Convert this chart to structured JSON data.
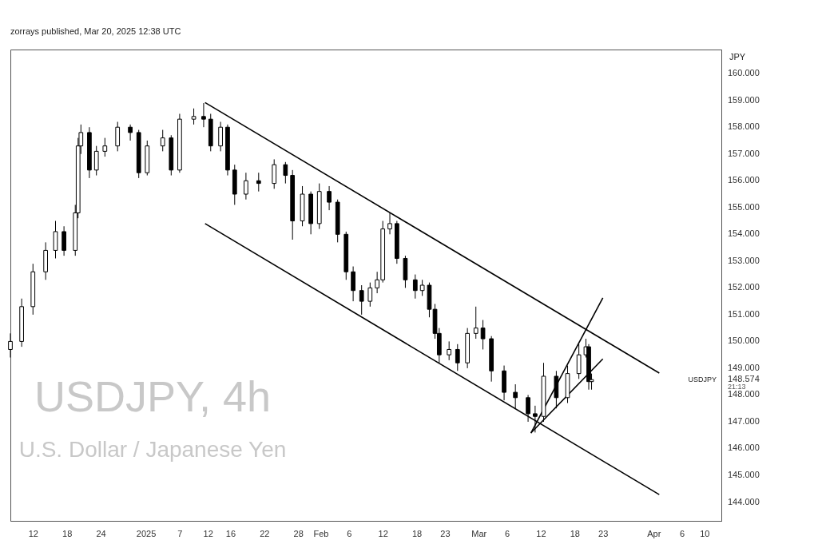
{
  "chart_data": {
    "type": "candlestick",
    "title": "USDJPY, 4h",
    "subtitle": "U.S. Dollar / Japanese Yen",
    "ylabel": "JPY",
    "annotations": [
      "zorrays published, Mar 20, 2025 12:38 UTC",
      "USDJPY",
      "21:13"
    ],
    "xlim": [
      "2024-12-08",
      "2025-04-13"
    ],
    "ylim": [
      143.3,
      160.9
    ],
    "xticks": [
      {
        "value": "2024-12-12",
        "label": "12"
      },
      {
        "value": "2024-12-18",
        "label": "18"
      },
      {
        "value": "2024-12-24",
        "label": "24"
      },
      {
        "value": "2025-01-01",
        "label": "2025"
      },
      {
        "value": "2025-01-07",
        "label": "7"
      },
      {
        "value": "2025-01-12",
        "label": "12"
      },
      {
        "value": "2025-01-16",
        "label": "16"
      },
      {
        "value": "2025-01-22",
        "label": "22"
      },
      {
        "value": "2025-01-28",
        "label": "28"
      },
      {
        "value": "2025-02-01",
        "label": "Feb"
      },
      {
        "value": "2025-02-06",
        "label": "6"
      },
      {
        "value": "2025-02-12",
        "label": "12"
      },
      {
        "value": "2025-02-18",
        "label": "18"
      },
      {
        "value": "2025-02-23",
        "label": "23"
      },
      {
        "value": "2025-03-01",
        "label": "Mar"
      },
      {
        "value": "2025-03-06",
        "label": "6"
      },
      {
        "value": "2025-03-12",
        "label": "12"
      },
      {
        "value": "2025-03-18",
        "label": "18"
      },
      {
        "value": "2025-03-23",
        "label": "23"
      },
      {
        "value": "2025-04-01",
        "label": "Apr"
      },
      {
        "value": "2025-04-06",
        "label": "6"
      },
      {
        "value": "2025-04-10",
        "label": "10"
      }
    ],
    "yticks": [
      {
        "value": 144,
        "label": "144.000"
      },
      {
        "value": 145,
        "label": "145.000"
      },
      {
        "value": 146,
        "label": "146.000"
      },
      {
        "value": 147,
        "label": "147.000"
      },
      {
        "value": 148,
        "label": "148.000"
      },
      {
        "value": 148.574,
        "label": "148.574"
      },
      {
        "value": 149,
        "label": "149.000"
      },
      {
        "value": 150,
        "label": "150.000"
      },
      {
        "value": 151,
        "label": "151.000"
      },
      {
        "value": 152,
        "label": "152.000"
      },
      {
        "value": 153,
        "label": "153.000"
      },
      {
        "value": 154,
        "label": "154.000"
      },
      {
        "value": 155,
        "label": "155.000"
      },
      {
        "value": 156,
        "label": "156.000"
      },
      {
        "value": 157,
        "label": "157.000"
      },
      {
        "value": 158,
        "label": "158.000"
      },
      {
        "value": 159,
        "label": "159.000"
      },
      {
        "value": 160,
        "label": "160.000"
      }
    ],
    "grid": false,
    "x": [
      "2024-12-08T00:00",
      "2024-12-10T00:00",
      "2024-12-12T00:00",
      "2024-12-14T06:00",
      "2024-12-16T00:00",
      "2024-12-17T12:00",
      "2024-12-19T12:00",
      "2024-12-20T00:00",
      "2024-12-20T12:00",
      "2024-12-22T00:00",
      "2024-12-23T06:00",
      "2024-12-24T18:00",
      "2024-12-27T00:00",
      "2024-12-29T06:00",
      "2024-12-30T18:00",
      "2025-01-01T06:00",
      "2025-01-04T00:00",
      "2025-01-05T12:00",
      "2025-01-07T00:00",
      "2025-01-09T12:00",
      "2025-01-11T06:00",
      "2025-01-12T12:00",
      "2025-01-14T06:00",
      "2025-01-15T12:00",
      "2025-01-16T18:00",
      "2025-01-18T18:00",
      "2025-01-21T00:00",
      "2025-01-23T18:00",
      "2025-01-25T18:00",
      "2025-01-27T00:00",
      "2025-01-28T18:00",
      "2025-01-30T06:00",
      "2025-01-31T18:00",
      "2025-02-02T12:00",
      "2025-02-04T00:00",
      "2025-02-05T12:00",
      "2025-02-06T18:00",
      "2025-02-08T06:00",
      "2025-02-09T18:00",
      "2025-02-11T00:00",
      "2025-02-12T00:00",
      "2025-02-13T06:00",
      "2025-02-14T12:00",
      "2025-02-16T00:00",
      "2025-02-17T18:00",
      "2025-02-19T00:00",
      "2025-02-20T06:00",
      "2025-02-21T06:00",
      "2025-02-22T00:00",
      "2025-02-23T18:00",
      "2025-02-25T06:00",
      "2025-02-27T00:00",
      "2025-02-28T12:00",
      "2025-03-01T18:00",
      "2025-03-03T06:00",
      "2025-03-05T12:00",
      "2025-03-07T12:00",
      "2025-03-09T18:00",
      "2025-03-11T00:00",
      "2025-03-12T12:00",
      "2025-03-14T18:00",
      "2025-03-16T18:00",
      "2025-03-18T18:00",
      "2025-03-20T00:00",
      "2025-03-20T12:00",
      "2025-03-21T00:00"
    ],
    "ohlc": [
      [
        149.7,
        150.3,
        149.4,
        150.0
      ],
      [
        150.0,
        151.6,
        149.8,
        151.3
      ],
      [
        151.3,
        152.9,
        151.0,
        152.6
      ],
      [
        152.6,
        153.7,
        152.3,
        153.4
      ],
      [
        153.4,
        154.5,
        153.1,
        154.1
      ],
      [
        154.1,
        154.3,
        153.2,
        153.4
      ],
      [
        153.4,
        155.1,
        153.2,
        154.8
      ],
      [
        154.8,
        157.6,
        154.6,
        157.3
      ],
      [
        157.3,
        158.1,
        157.0,
        157.8
      ],
      [
        157.8,
        158.0,
        156.1,
        156.4
      ],
      [
        156.4,
        157.3,
        156.2,
        157.1
      ],
      [
        157.1,
        157.6,
        156.9,
        157.3
      ],
      [
        157.3,
        158.2,
        157.1,
        158.0
      ],
      [
        158.0,
        158.1,
        157.5,
        157.8
      ],
      [
        157.8,
        157.9,
        156.1,
        156.3
      ],
      [
        156.3,
        157.5,
        156.2,
        157.3
      ],
      [
        157.3,
        157.9,
        157.1,
        157.6
      ],
      [
        157.6,
        157.7,
        156.2,
        156.4
      ],
      [
        156.4,
        158.5,
        156.3,
        158.3
      ],
      [
        158.3,
        158.7,
        158.1,
        158.4
      ],
      [
        158.4,
        158.9,
        158.0,
        158.3
      ],
      [
        158.3,
        158.5,
        157.1,
        157.3
      ],
      [
        157.3,
        158.2,
        157.1,
        158.0
      ],
      [
        158.0,
        158.1,
        156.2,
        156.4
      ],
      [
        156.4,
        156.6,
        155.1,
        155.5
      ],
      [
        155.5,
        156.3,
        155.3,
        156.0
      ],
      [
        156.0,
        156.3,
        155.6,
        155.9
      ],
      [
        155.9,
        156.8,
        155.7,
        156.6
      ],
      [
        156.6,
        156.7,
        155.9,
        156.2
      ],
      [
        156.2,
        156.4,
        153.8,
        154.5
      ],
      [
        154.5,
        155.8,
        154.3,
        155.5
      ],
      [
        155.5,
        155.6,
        154.0,
        154.4
      ],
      [
        154.4,
        155.9,
        154.2,
        155.6
      ],
      [
        155.6,
        155.8,
        154.9,
        155.2
      ],
      [
        155.2,
        155.3,
        153.7,
        154.0
      ],
      [
        154.0,
        154.1,
        152.3,
        152.6
      ],
      [
        152.6,
        152.8,
        151.5,
        151.9
      ],
      [
        151.9,
        152.1,
        151.0,
        151.5
      ],
      [
        151.5,
        152.2,
        151.3,
        152.0
      ],
      [
        152.0,
        152.6,
        151.8,
        152.3
      ],
      [
        152.3,
        154.5,
        152.2,
        154.2
      ],
      [
        154.2,
        154.8,
        154.0,
        154.4
      ],
      [
        154.4,
        154.5,
        152.9,
        153.1
      ],
      [
        153.1,
        153.2,
        152.0,
        152.3
      ],
      [
        152.3,
        152.5,
        151.6,
        151.9
      ],
      [
        151.9,
        152.3,
        151.7,
        152.1
      ],
      [
        152.1,
        152.2,
        150.9,
        151.2
      ],
      [
        151.2,
        151.4,
        150.1,
        150.3
      ],
      [
        150.3,
        150.5,
        149.2,
        149.5
      ],
      [
        149.5,
        150.0,
        149.3,
        149.7
      ],
      [
        149.7,
        149.9,
        148.9,
        149.2
      ],
      [
        149.2,
        150.5,
        149.0,
        150.3
      ],
      [
        150.3,
        151.3,
        150.1,
        150.5
      ],
      [
        150.5,
        150.8,
        149.7,
        150.1
      ],
      [
        150.1,
        150.2,
        148.5,
        148.9
      ],
      [
        148.9,
        149.1,
        147.8,
        148.1
      ],
      [
        148.1,
        148.4,
        147.5,
        147.9
      ],
      [
        147.9,
        148.0,
        147.0,
        147.3
      ],
      [
        147.3,
        147.6,
        146.6,
        147.2
      ],
      [
        147.2,
        149.2,
        147.0,
        148.7
      ],
      [
        148.7,
        148.9,
        147.5,
        147.9
      ],
      [
        147.9,
        149.1,
        147.7,
        148.8
      ],
      [
        148.8,
        149.9,
        148.6,
        149.5
      ],
      [
        149.5,
        150.1,
        149.4,
        149.8
      ],
      [
        149.8,
        149.9,
        148.2,
        148.5
      ],
      [
        148.5,
        148.8,
        148.2,
        148.574
      ]
    ],
    "series": [
      {
        "type": "line",
        "color": "#000000",
        "x": [
          "2025-01-11T12:00",
          "2025-04-02T00:00"
        ],
        "values": [
          158.92,
          148.82
        ]
      },
      {
        "type": "line",
        "color": "#000000",
        "x": [
          "2025-01-11T12:00",
          "2025-04-02T00:00"
        ],
        "values": [
          154.4,
          144.28
        ]
      },
      {
        "type": "line",
        "color": "#000000",
        "x": [
          "2025-03-10T06:00",
          "2025-03-23T00:00"
        ],
        "values": [
          146.58,
          151.63
        ]
      },
      {
        "type": "line",
        "color": "#000000",
        "x": [
          "2025-03-10T06:00",
          "2025-03-23T00:00"
        ],
        "values": [
          146.58,
          149.35
        ]
      }
    ]
  }
}
